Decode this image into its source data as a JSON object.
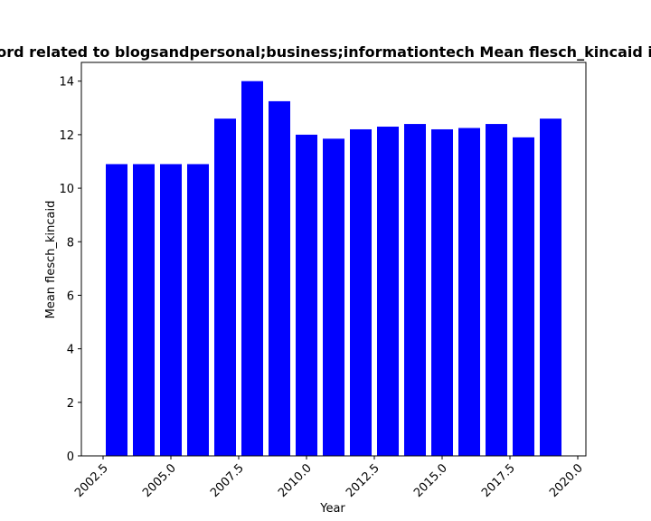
{
  "chart_data": {
    "type": "bar",
    "title": "Keyword related to blogsandpersonal;business;informationtech Mean flesch_kincaid in posts",
    "xlabel": "Year",
    "ylabel": "Mean flesch_kincaid",
    "x": [
      2003,
      2004,
      2005,
      2006,
      2007,
      2008,
      2009,
      2010,
      2011,
      2012,
      2013,
      2014,
      2015,
      2016,
      2017,
      2018,
      2019
    ],
    "values": [
      10.9,
      10.9,
      10.9,
      10.9,
      12.6,
      14.0,
      13.25,
      12.0,
      11.85,
      12.2,
      12.3,
      12.4,
      12.2,
      12.25,
      12.4,
      11.9,
      12.6
    ],
    "xlim": [
      2001.7,
      2020.3
    ],
    "ylim": [
      0,
      14.7
    ],
    "xticks": [
      2002.5,
      2005.0,
      2007.5,
      2010.0,
      2012.5,
      2015.0,
      2017.5,
      2020.0
    ],
    "xtick_labels": [
      "2002.5",
      "2005.0",
      "2007.5",
      "2010.0",
      "2012.5",
      "2015.0",
      "2017.5",
      "2020.0"
    ],
    "yticks": [
      0,
      2,
      4,
      6,
      8,
      10,
      12,
      14
    ],
    "ytick_labels": [
      "0",
      "2",
      "4",
      "6",
      "8",
      "10",
      "12",
      "14"
    ],
    "bar_width": 0.8,
    "color": "#0000ff",
    "grid": false,
    "legend": "none"
  }
}
